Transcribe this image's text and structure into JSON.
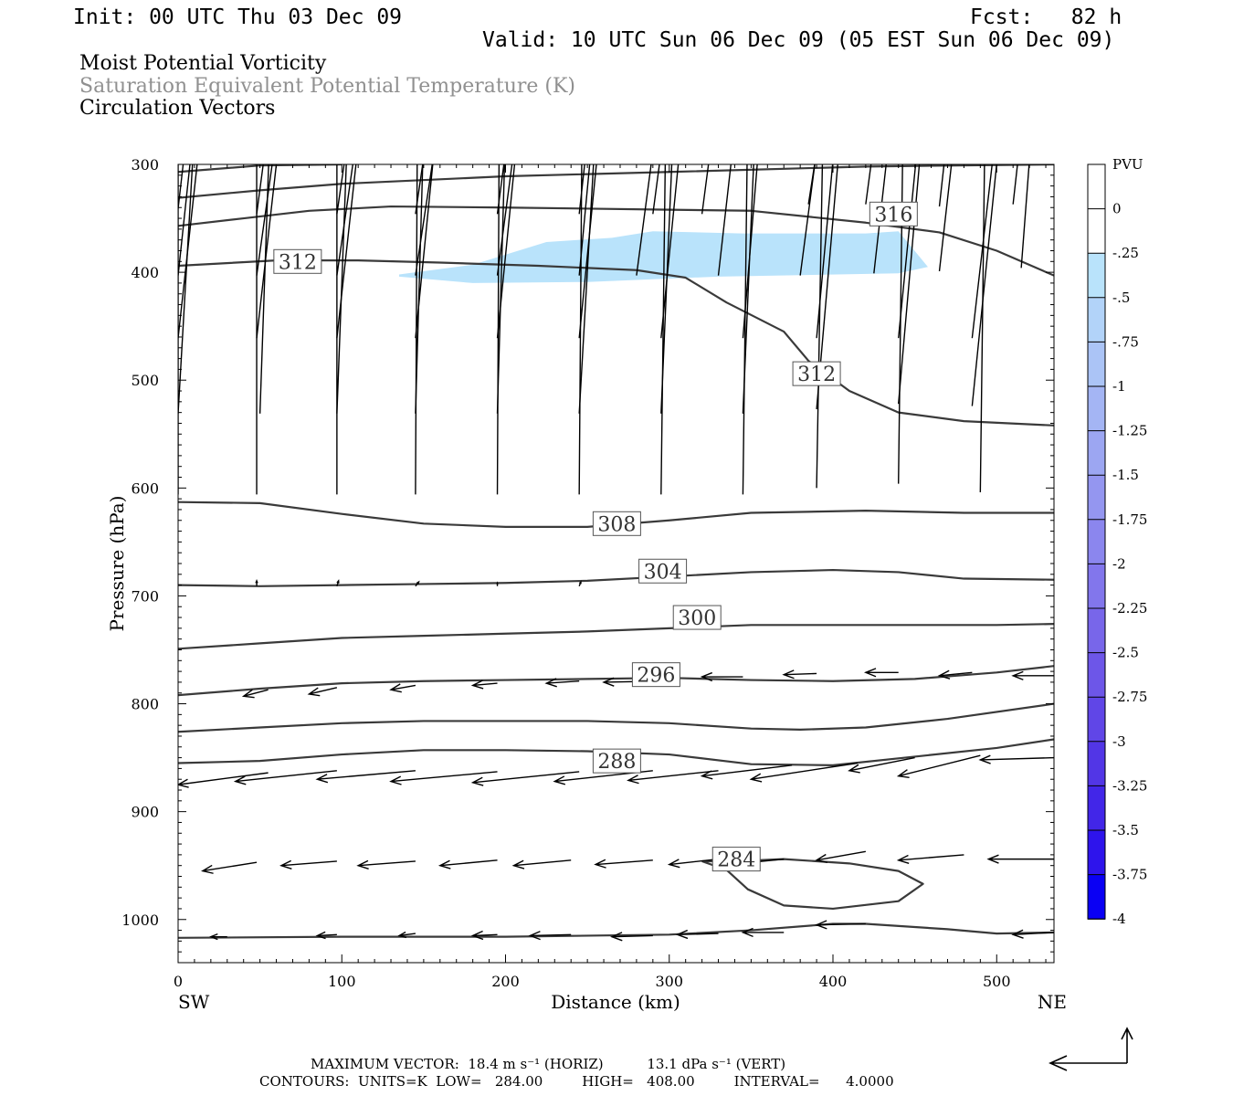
{
  "header": {
    "init": "Init: 00 UTC Thu 03 Dec 09",
    "fcst": "Fcst:   82 h",
    "valid": "Valid: 10 UTC Sun 06 Dec 09 (05 EST Sun 06 Dec 09)"
  },
  "titles": {
    "line1": "Moist Potential Vorticity",
    "line2": "Saturation Equivalent Potential Temperature (K)",
    "line3": "Circulation Vectors"
  },
  "colors": {
    "title2": "#909090",
    "contour": "#3a3a3a",
    "pv_shade": "#b9e3fb",
    "arrow": "#000000"
  },
  "chart_data": {
    "type": "cross-section",
    "xlabel": "Distance (km)",
    "ylabel": "Pressure (hPa)",
    "xlim": [
      0,
      535
    ],
    "ylim": [
      1040,
      300
    ],
    "x_ticks": [
      0,
      100,
      200,
      300,
      400,
      500
    ],
    "x_tick_labels": [
      "0",
      "100",
      "200",
      "300",
      "400",
      "500"
    ],
    "y_ticks": [
      300,
      400,
      500,
      600,
      700,
      800,
      900,
      1000
    ],
    "y_tick_labels": [
      "300",
      "400",
      "500",
      "600",
      "700",
      "800",
      "900",
      "1000"
    ],
    "left_end_label": "SW",
    "right_end_label": "NE",
    "colorbar": {
      "title": "PVU",
      "levels": [
        0,
        -0.25,
        -0.5,
        -0.75,
        -1,
        -1.25,
        -1.5,
        -1.75,
        -2,
        -2.25,
        -2.5,
        -2.75,
        -3,
        -3.25,
        -3.5,
        -3.75,
        -4
      ],
      "labels": [
        "0",
        "-.25",
        "-.5",
        "-.75",
        "-1",
        "-1.25",
        "-1.5",
        "-1.75",
        "-2",
        "-2.25",
        "-2.5",
        "-2.75",
        "-3",
        "-3.25",
        "-3.5",
        "-3.75",
        "-4"
      ],
      "colors": [
        "#ffffff",
        "#ffffff",
        "#b9e3fb",
        "#b2d3f9",
        "#abc4f6",
        "#a4b5f4",
        "#9ca6f2",
        "#9496f0",
        "#8b86ee",
        "#8276ec",
        "#7866ea",
        "#6d56e8",
        "#6046e7",
        "#5236e6",
        "#4226e8",
        "#2e14ec",
        "#0a00f4"
      ]
    },
    "pv_region": [
      [
        135,
        402
      ],
      [
        180,
        393
      ],
      [
        225,
        372
      ],
      [
        265,
        368
      ],
      [
        290,
        362
      ],
      [
        345,
        364
      ],
      [
        420,
        364
      ],
      [
        440,
        362
      ],
      [
        458,
        395
      ],
      [
        440,
        401
      ],
      [
        330,
        404
      ],
      [
        250,
        409
      ],
      [
        180,
        410
      ],
      [
        135,
        404
      ]
    ],
    "contour_labels": [
      "316",
      "312",
      "312",
      "308",
      "304",
      "300",
      "296",
      "288",
      "284"
    ],
    "contours": [
      {
        "value": 316,
        "points": [
          [
            0,
            307
          ],
          [
            50,
            301
          ],
          [
            100,
            300
          ]
        ]
      },
      {
        "value": 316,
        "points": [
          [
            0,
            331
          ],
          [
            50,
            324
          ],
          [
            100,
            318
          ],
          [
            200,
            311
          ],
          [
            300,
            307
          ],
          [
            420,
            302
          ],
          [
            535,
            300
          ]
        ]
      },
      {
        "value": 316,
        "points": [
          [
            0,
            357
          ],
          [
            40,
            350
          ],
          [
            80,
            343
          ],
          [
            130,
            339
          ],
          [
            200,
            340
          ],
          [
            300,
            342
          ],
          [
            350,
            343
          ],
          [
            420,
            354
          ],
          [
            465,
            363
          ],
          [
            500,
            380
          ],
          [
            535,
            403
          ]
        ]
      },
      {
        "value": 312,
        "points": [
          [
            0,
            394
          ],
          [
            60,
            389
          ],
          [
            110,
            389
          ],
          [
            160,
            391
          ],
          [
            220,
            394
          ],
          [
            280,
            398
          ],
          [
            310,
            405
          ],
          [
            335,
            428
          ],
          [
            370,
            455
          ],
          [
            385,
            482
          ],
          [
            410,
            510
          ],
          [
            440,
            530
          ],
          [
            480,
            538
          ],
          [
            535,
            542
          ]
        ]
      },
      {
        "value": 308,
        "points": [
          [
            0,
            613
          ],
          [
            50,
            614
          ],
          [
            100,
            624
          ],
          [
            150,
            633
          ],
          [
            200,
            636
          ],
          [
            250,
            636
          ],
          [
            300,
            630
          ],
          [
            350,
            623
          ],
          [
            420,
            621
          ],
          [
            480,
            623
          ],
          [
            535,
            623
          ]
        ]
      },
      {
        "value": 304,
        "points": [
          [
            0,
            690
          ],
          [
            50,
            691
          ],
          [
            100,
            690
          ],
          [
            150,
            689
          ],
          [
            200,
            688
          ],
          [
            250,
            686
          ],
          [
            300,
            682
          ],
          [
            350,
            678
          ],
          [
            400,
            676
          ],
          [
            440,
            678
          ],
          [
            480,
            684
          ],
          [
            535,
            685
          ]
        ]
      },
      {
        "value": 300,
        "points": [
          [
            0,
            749
          ],
          [
            50,
            744
          ],
          [
            100,
            739
          ],
          [
            150,
            737
          ],
          [
            200,
            735
          ],
          [
            250,
            733
          ],
          [
            300,
            730
          ],
          [
            350,
            727
          ],
          [
            400,
            727
          ],
          [
            450,
            727
          ],
          [
            500,
            727
          ],
          [
            535,
            726
          ]
        ]
      },
      {
        "value": 296,
        "points": [
          [
            0,
            792
          ],
          [
            50,
            786
          ],
          [
            100,
            781
          ],
          [
            150,
            779
          ],
          [
            200,
            778
          ],
          [
            250,
            777
          ],
          [
            300,
            776
          ],
          [
            350,
            778
          ],
          [
            400,
            779
          ],
          [
            450,
            777
          ],
          [
            500,
            771
          ],
          [
            535,
            765
          ]
        ]
      },
      {
        "value": 292,
        "points": [
          [
            0,
            826
          ],
          [
            50,
            822
          ],
          [
            100,
            818
          ],
          [
            150,
            816
          ],
          [
            200,
            816
          ],
          [
            250,
            816
          ],
          [
            300,
            818
          ],
          [
            350,
            823
          ],
          [
            380,
            824
          ],
          [
            420,
            822
          ],
          [
            470,
            814
          ],
          [
            535,
            800
          ]
        ]
      },
      {
        "value": 288,
        "points": [
          [
            0,
            855
          ],
          [
            50,
            853
          ],
          [
            100,
            847
          ],
          [
            150,
            843
          ],
          [
            200,
            843
          ],
          [
            250,
            844
          ],
          [
            300,
            847
          ],
          [
            350,
            856
          ],
          [
            400,
            857
          ],
          [
            450,
            849
          ],
          [
            500,
            841
          ],
          [
            535,
            833
          ]
        ]
      },
      {
        "value": 284,
        "points": [
          [
            320,
            946
          ],
          [
            340,
            946
          ],
          [
            370,
            944
          ],
          [
            410,
            948
          ],
          [
            440,
            955
          ],
          [
            455,
            967
          ],
          [
            440,
            983
          ],
          [
            400,
            990
          ],
          [
            370,
            987
          ],
          [
            348,
            972
          ],
          [
            335,
            954
          ],
          [
            320,
            946
          ]
        ]
      },
      {
        "value": 284,
        "points": [
          [
            0,
            1017
          ],
          [
            100,
            1016
          ],
          [
            200,
            1016
          ],
          [
            300,
            1014
          ],
          [
            350,
            1010
          ],
          [
            400,
            1004
          ],
          [
            420,
            1004
          ],
          [
            470,
            1009
          ],
          [
            500,
            1013
          ],
          [
            535,
            1012
          ]
        ]
      }
    ],
    "vectors": [
      [
        0,
        341,
        26,
        -4
      ],
      [
        48,
        346,
        78,
        0
      ],
      [
        97,
        346,
        130,
        0
      ],
      [
        145,
        346,
        178,
        0
      ],
      [
        195,
        346,
        225,
        0
      ],
      [
        245,
        346,
        270,
        0
      ],
      [
        290,
        346,
        320,
        0
      ],
      [
        320,
        346,
        350,
        -3
      ],
      [
        385,
        337,
        420,
        -5
      ],
      [
        420,
        337,
        450,
        -5
      ],
      [
        465,
        339,
        490,
        -5
      ],
      [
        510,
        337,
        535,
        -4
      ],
      [
        0,
        403,
        28,
        4
      ],
      [
        48,
        403,
        85,
        0
      ],
      [
        97,
        403,
        135,
        0
      ],
      [
        145,
        403,
        185,
        0
      ],
      [
        195,
        403,
        230,
        0
      ],
      [
        245,
        403,
        270,
        0
      ],
      [
        280,
        403,
        315,
        0
      ],
      [
        330,
        403,
        360,
        0
      ],
      [
        380,
        403,
        415,
        -2
      ],
      [
        425,
        401,
        455,
        -4
      ],
      [
        465,
        399,
        495,
        -4
      ],
      [
        515,
        396,
        535,
        -3
      ],
      [
        0,
        461,
        33,
        4
      ],
      [
        48,
        461,
        82,
        5
      ],
      [
        97,
        461,
        130,
        5
      ],
      [
        145,
        461,
        175,
        3
      ],
      [
        195,
        461,
        225,
        2
      ],
      [
        245,
        461,
        275,
        1
      ],
      [
        295,
        461,
        325,
        1
      ],
      [
        345,
        461,
        370,
        1
      ],
      [
        390,
        461,
        418,
        0
      ],
      [
        440,
        461,
        470,
        0
      ],
      [
        485,
        461,
        520,
        0
      ],
      [
        0,
        531,
        20,
        4
      ],
      [
        50,
        531,
        62,
        7
      ],
      [
        97,
        531,
        110,
        7
      ],
      [
        145,
        531,
        155,
        7
      ],
      [
        195,
        531,
        205,
        4
      ],
      [
        245,
        531,
        265,
        1
      ],
      [
        295,
        531,
        310,
        1
      ],
      [
        345,
        531,
        360,
        0
      ],
      [
        390,
        527,
        420,
        0
      ],
      [
        440,
        522,
        470,
        0
      ],
      [
        485,
        524,
        520,
        0
      ],
      [
        0,
        606,
        0,
        10
      ],
      [
        48,
        606,
        48,
        9
      ],
      [
        97,
        606,
        97,
        9
      ],
      [
        145,
        606,
        147,
        8
      ],
      [
        195,
        606,
        197,
        8
      ],
      [
        245,
        606,
        248,
        6
      ],
      [
        295,
        606,
        300,
        5
      ],
      [
        345,
        606,
        350,
        3
      ],
      [
        390,
        600,
        397,
        5
      ],
      [
        440,
        596,
        445,
        1
      ],
      [
        490,
        604,
        495,
        5
      ],
      [
        48,
        691,
        48,
        686
      ],
      [
        97,
        691,
        98,
        686
      ],
      [
        145,
        691,
        147,
        687
      ],
      [
        195,
        691,
        195,
        688
      ],
      [
        245,
        691,
        246,
        687
      ],
      [
        55,
        787,
        40,
        793
      ],
      [
        97,
        785,
        80,
        791
      ],
      [
        145,
        783,
        130,
        787
      ],
      [
        195,
        781,
        180,
        783
      ],
      [
        245,
        779,
        225,
        781
      ],
      [
        295,
        779,
        260,
        780
      ],
      [
        345,
        775,
        320,
        775
      ],
      [
        390,
        772,
        370,
        773
      ],
      [
        440,
        771,
        420,
        771
      ],
      [
        485,
        771,
        465,
        774
      ],
      [
        535,
        774,
        510,
        774
      ],
      [
        55,
        864,
        0,
        875
      ],
      [
        97,
        862,
        35,
        872
      ],
      [
        145,
        862,
        85,
        870
      ],
      [
        195,
        863,
        130,
        872
      ],
      [
        245,
        863,
        180,
        873
      ],
      [
        290,
        862,
        230,
        872
      ],
      [
        330,
        862,
        275,
        871
      ],
      [
        375,
        857,
        320,
        867
      ],
      [
        415,
        855,
        350,
        870
      ],
      [
        450,
        850,
        410,
        862
      ],
      [
        490,
        848,
        440,
        867
      ],
      [
        535,
        850,
        490,
        852
      ],
      [
        48,
        947,
        15,
        955
      ],
      [
        97,
        946,
        63,
        950
      ],
      [
        145,
        946,
        110,
        950
      ],
      [
        195,
        945,
        160,
        950
      ],
      [
        240,
        945,
        205,
        950
      ],
      [
        290,
        945,
        255,
        949
      ],
      [
        330,
        944,
        300,
        949
      ],
      [
        370,
        944,
        330,
        950
      ],
      [
        420,
        937,
        390,
        945
      ],
      [
        480,
        940,
        440,
        945
      ],
      [
        535,
        944,
        495,
        944
      ],
      [
        30,
        1016,
        20,
        1016
      ],
      [
        97,
        1014,
        85,
        1015
      ],
      [
        145,
        1013,
        135,
        1015
      ],
      [
        195,
        1014,
        180,
        1015
      ],
      [
        240,
        1014,
        215,
        1015
      ],
      [
        290,
        1015,
        265,
        1016
      ],
      [
        330,
        1013,
        305,
        1014
      ],
      [
        370,
        1012,
        345,
        1012
      ],
      [
        420,
        1004,
        390,
        1005
      ],
      [
        535,
        1012,
        510,
        1014
      ]
    ]
  },
  "footer": {
    "line1": "MAXIMUM VECTOR:  18.4 m s⁻¹ (HORIZ)          13.1 dPa s⁻¹ (VERT)",
    "line2": "CONTOURS:  UNITS=K  LOW=   284.00         HIGH=   408.00         INTERVAL=      4.0000"
  }
}
